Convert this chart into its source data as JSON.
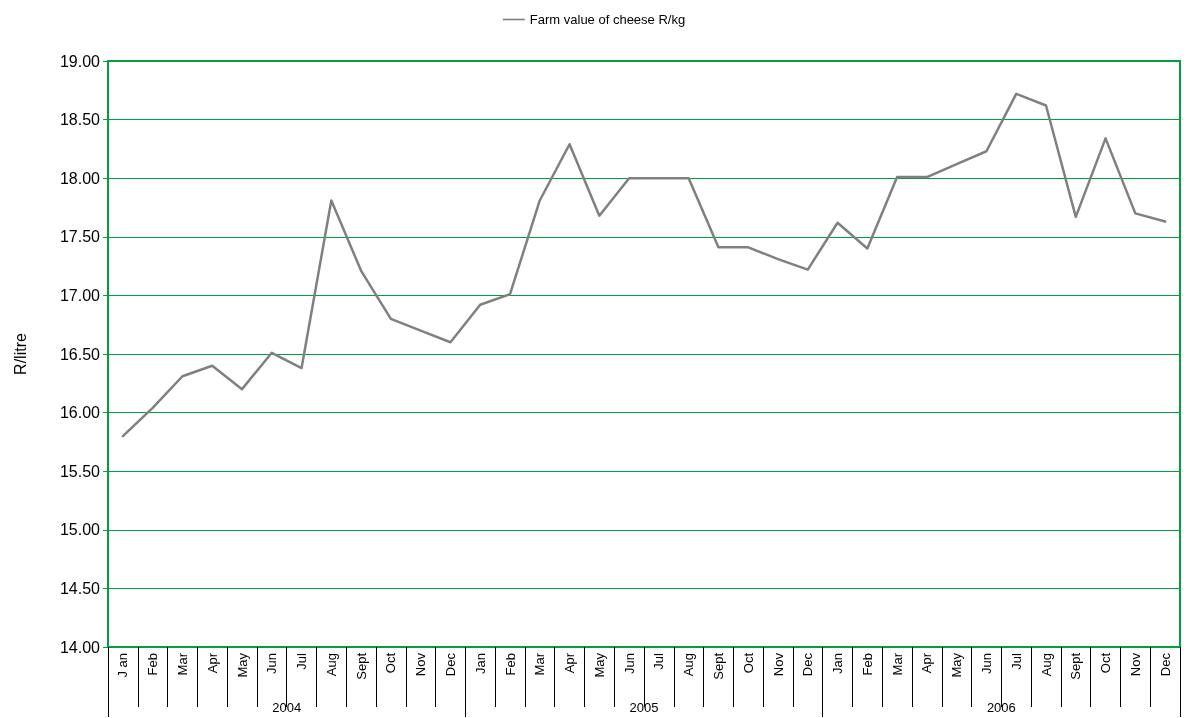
{
  "chart_data": {
    "type": "line",
    "ylabel": "R/litre",
    "categories": [
      "J an",
      "Feb",
      "Mar",
      "Apr",
      "May",
      "Jun",
      "Jul",
      "Aug",
      "Sept",
      "Oct",
      "Nov",
      "Dec",
      "Jan",
      "Feb",
      "Mar",
      "Apr",
      "May",
      "Jun",
      "Jul",
      "Aug",
      "Sept",
      "Oct",
      "Nov",
      "Dec",
      "Jan",
      "Feb",
      "Mar",
      "Apr",
      "May",
      "Jun",
      "Jul",
      "Aug",
      "Sept",
      "Oct",
      "Nov",
      "Dec"
    ],
    "series": [
      {
        "name": "Farm value of cheese R/kg",
        "color": "#808080",
        "values": [
          15.8,
          16.04,
          16.31,
          16.4,
          16.2,
          16.51,
          16.38,
          17.81,
          17.21,
          16.8,
          16.7,
          16.6,
          16.92,
          17.01,
          17.81,
          18.29,
          17.68,
          18.0,
          18.0,
          18.0,
          17.41,
          17.41,
          17.31,
          17.22,
          17.62,
          17.4,
          18.01,
          18.01,
          18.12,
          18.23,
          18.72,
          18.62,
          17.67,
          18.34,
          17.7,
          17.63
        ]
      }
    ],
    "annotations": [
      "2004",
      "2005",
      "2006"
    ],
    "ylim": [
      14,
      19
    ],
    "yticks": [
      {
        "value": 14,
        "label": "14.00"
      },
      {
        "value": 14.5,
        "label": "14.50"
      },
      {
        "value": 15,
        "label": "15.00"
      },
      {
        "value": 15.5,
        "label": "15.50"
      },
      {
        "value": 16,
        "label": "16.00"
      },
      {
        "value": 16.5,
        "label": "16.50"
      },
      {
        "value": 17,
        "label": "17.00"
      },
      {
        "value": 17.5,
        "label": "17.50"
      },
      {
        "value": 18,
        "label": "18.00"
      },
      {
        "value": 18.5,
        "label": "18.50"
      },
      {
        "value": 19,
        "label": "19.00"
      }
    ],
    "grid": "y",
    "legend": "top",
    "marker": "none",
    "line_style": "solid"
  }
}
